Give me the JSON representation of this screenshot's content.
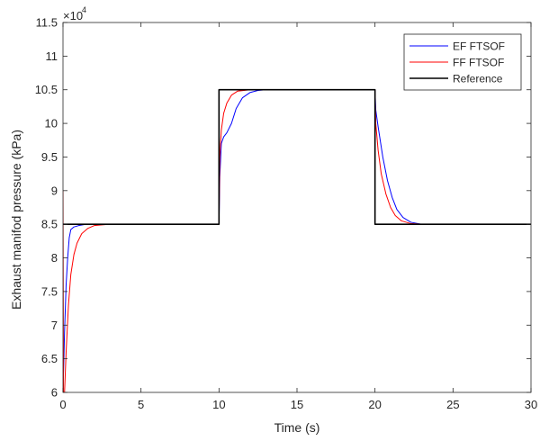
{
  "chart_data": {
    "type": "line",
    "title": "",
    "xlabel": "Time (s)",
    "ylabel": "Exhaust manifod pressure (kPa)",
    "y_exponent_label": "×10",
    "y_exponent_power": "4",
    "xlim": [
      0,
      30
    ],
    "ylim": [
      6,
      11.5
    ],
    "x_ticks": [
      "0",
      "5",
      "10",
      "15",
      "20",
      "25",
      "30"
    ],
    "y_ticks": [
      "6",
      "6.5",
      "7",
      "7.5",
      "8",
      "8.5",
      "9",
      "9.5",
      "10",
      "10.5",
      "11",
      "11.5"
    ],
    "grid": false,
    "legend_position": "top-right",
    "series": [
      {
        "name": "EF FTSOF",
        "color": "#0000ff",
        "points": [
          [
            0,
            6.0
          ],
          [
            0.1,
            6.9
          ],
          [
            0.2,
            7.6
          ],
          [
            0.3,
            8.0
          ],
          [
            0.4,
            8.3
          ],
          [
            0.5,
            8.42
          ],
          [
            0.7,
            8.46
          ],
          [
            1.0,
            8.48
          ],
          [
            1.5,
            8.5
          ],
          [
            10,
            8.5
          ],
          [
            10.05,
            9.2
          ],
          [
            10.15,
            9.7
          ],
          [
            10.3,
            9.8
          ],
          [
            10.5,
            9.86
          ],
          [
            10.8,
            10.0
          ],
          [
            11.1,
            10.22
          ],
          [
            11.5,
            10.38
          ],
          [
            12.0,
            10.46
          ],
          [
            12.5,
            10.49
          ],
          [
            13.0,
            10.5
          ],
          [
            20,
            10.5
          ],
          [
            20.05,
            10.2
          ],
          [
            20.2,
            9.95
          ],
          [
            20.5,
            9.5
          ],
          [
            20.8,
            9.15
          ],
          [
            21.1,
            8.9
          ],
          [
            21.4,
            8.72
          ],
          [
            21.8,
            8.6
          ],
          [
            22.3,
            8.53
          ],
          [
            23.0,
            8.5
          ],
          [
            30,
            8.5
          ]
        ]
      },
      {
        "name": "FF FTSOF",
        "color": "#ff0000",
        "points": [
          [
            0,
            9.0
          ],
          [
            0.03,
            6.0
          ],
          [
            0.1,
            6.0
          ],
          [
            0.2,
            6.6
          ],
          [
            0.35,
            7.3
          ],
          [
            0.5,
            7.75
          ],
          [
            0.7,
            8.05
          ],
          [
            0.9,
            8.22
          ],
          [
            1.2,
            8.36
          ],
          [
            1.6,
            8.44
          ],
          [
            2.0,
            8.48
          ],
          [
            3.0,
            8.5
          ],
          [
            10,
            8.5
          ],
          [
            10.05,
            9.5
          ],
          [
            10.15,
            9.9
          ],
          [
            10.3,
            10.15
          ],
          [
            10.5,
            10.3
          ],
          [
            10.8,
            10.42
          ],
          [
            11.2,
            10.48
          ],
          [
            12.0,
            10.5
          ],
          [
            20,
            10.5
          ],
          [
            20.05,
            10.0
          ],
          [
            20.2,
            9.6
          ],
          [
            20.4,
            9.25
          ],
          [
            20.7,
            8.95
          ],
          [
            21.0,
            8.75
          ],
          [
            21.3,
            8.63
          ],
          [
            21.7,
            8.55
          ],
          [
            22.3,
            8.51
          ],
          [
            23.0,
            8.5
          ],
          [
            30,
            8.5
          ]
        ]
      },
      {
        "name": "Reference",
        "color": "#000000",
        "points": [
          [
            0,
            8.5
          ],
          [
            10,
            8.5
          ],
          [
            10,
            10.5
          ],
          [
            20,
            10.5
          ],
          [
            20,
            8.5
          ],
          [
            30,
            8.5
          ]
        ]
      }
    ]
  }
}
